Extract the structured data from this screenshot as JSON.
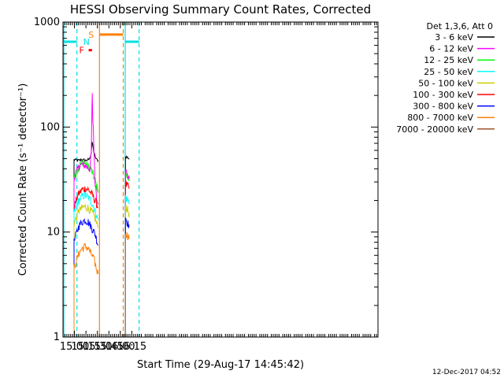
{
  "chart_data": {
    "type": "line",
    "title": "HESSI Observing Summary Count Rates, Corrected",
    "xlabel": "Start Time (29-Aug-17 14:45:42)",
    "ylabel": "Corrected Count Rate (s⁻¹ detector⁻¹)",
    "x_unit": "minutes of day (UT)",
    "xlim": [
      885,
      1297
    ],
    "x_ticks": [
      {
        "t": 900,
        "label": "15:00"
      },
      {
        "t": 915,
        "label": "15:15"
      },
      {
        "t": 930,
        "label": "15:30"
      },
      {
        "t": 945,
        "label": "15:45"
      },
      {
        "t": 960,
        "label": "16:00"
      },
      {
        "t": 975,
        "label": "16:15"
      }
    ],
    "ylim": [
      1,
      1000
    ],
    "y_scale": "log",
    "y_ticks": [
      {
        "v": 1,
        "label": "1"
      },
      {
        "v": 10,
        "label": "10"
      },
      {
        "v": 100,
        "label": "100"
      },
      {
        "v": 1000,
        "label": "1000"
      }
    ],
    "legend_header": "Det 1,3,6, Att 0",
    "legend_position": "right",
    "series": [
      {
        "name": "3 - 6 keV",
        "color": "#000000",
        "points": [
          [
            899.4,
            49
          ],
          [
            905,
            48
          ],
          [
            910,
            49
          ],
          [
            915,
            48
          ],
          [
            918,
            49
          ],
          [
            920,
            50
          ],
          [
            922,
            58
          ],
          [
            923,
            72
          ],
          [
            924,
            66
          ],
          [
            925,
            60
          ],
          [
            927,
            52
          ],
          [
            929,
            49
          ],
          [
            931,
            48
          ],
          [
            966.7,
            52
          ],
          [
            968,
            52
          ],
          [
            970,
            51
          ],
          [
            971.5,
            50
          ]
        ]
      },
      {
        "name": "6 - 12 keV",
        "color": "#ff00ff",
        "points": [
          [
            899.4,
            33
          ],
          [
            903,
            38
          ],
          [
            906,
            42
          ],
          [
            910,
            44
          ],
          [
            914,
            43
          ],
          [
            918,
            41
          ],
          [
            920,
            40
          ],
          [
            922,
            55
          ],
          [
            922.8,
            140
          ],
          [
            923.3,
            200
          ],
          [
            923.9,
            120
          ],
          [
            924.8,
            95
          ],
          [
            925.8,
            50
          ],
          [
            927,
            30
          ],
          [
            929,
            22
          ],
          [
            931,
            19
          ],
          [
            966.7,
            40
          ],
          [
            968,
            36
          ],
          [
            970,
            34
          ],
          [
            971.5,
            32
          ]
        ]
      },
      {
        "name": "12 - 25 keV",
        "color": "#00ff00",
        "points": [
          [
            899.4,
            32
          ],
          [
            903,
            38
          ],
          [
            906,
            43
          ],
          [
            910,
            46
          ],
          [
            914,
            45
          ],
          [
            918,
            42
          ],
          [
            921,
            40
          ],
          [
            924,
            36
          ],
          [
            927,
            31
          ],
          [
            929,
            27
          ],
          [
            931,
            25
          ],
          [
            966.7,
            37
          ],
          [
            968,
            34
          ],
          [
            970,
            33
          ],
          [
            971.5,
            31
          ]
        ]
      },
      {
        "name": "25 - 50 keV",
        "color": "#00ffff",
        "points": [
          [
            899.4,
            15
          ],
          [
            903,
            18
          ],
          [
            906,
            20
          ],
          [
            910,
            22
          ],
          [
            914,
            22.5
          ],
          [
            918,
            21.5
          ],
          [
            921,
            20
          ],
          [
            924,
            18
          ],
          [
            927,
            16
          ],
          [
            929,
            14.5
          ],
          [
            931,
            13
          ],
          [
            966.7,
            22
          ],
          [
            968,
            21
          ],
          [
            970,
            20
          ],
          [
            971.5,
            19
          ]
        ]
      },
      {
        "name": "50 - 100 keV",
        "color": "#cccc00",
        "points": [
          [
            899.4,
            12
          ],
          [
            903,
            14
          ],
          [
            906,
            16
          ],
          [
            910,
            17
          ],
          [
            914,
            17.5
          ],
          [
            918,
            17
          ],
          [
            921,
            16
          ],
          [
            924,
            15
          ],
          [
            927,
            13.5
          ],
          [
            929,
            12
          ],
          [
            931,
            11
          ],
          [
            966.7,
            18
          ],
          [
            968,
            17
          ],
          [
            970,
            16
          ],
          [
            971.5,
            15
          ]
        ]
      },
      {
        "name": "100 - 300 keV",
        "color": "#ff0000",
        "points": [
          [
            899.4,
            17
          ],
          [
            903,
            21
          ],
          [
            906,
            23.5
          ],
          [
            910,
            25.5
          ],
          [
            914,
            26
          ],
          [
            918,
            25.5
          ],
          [
            921,
            24
          ],
          [
            924,
            22
          ],
          [
            927,
            20
          ],
          [
            929,
            18.5
          ],
          [
            931,
            17
          ],
          [
            966.7,
            30
          ],
          [
            968,
            28
          ],
          [
            970,
            27
          ],
          [
            971.5,
            26
          ]
        ]
      },
      {
        "name": "300 - 800 keV",
        "color": "#0000ff",
        "points": [
          [
            899.4,
            8
          ],
          [
            903,
            10
          ],
          [
            906,
            11.5
          ],
          [
            910,
            12.5
          ],
          [
            914,
            13
          ],
          [
            918,
            12.5
          ],
          [
            921,
            11.5
          ],
          [
            924,
            10.5
          ],
          [
            927,
            9.5
          ],
          [
            929,
            8.5
          ],
          [
            931,
            7.5
          ],
          [
            966.7,
            14
          ],
          [
            968,
            13
          ],
          [
            970,
            12
          ],
          [
            971.5,
            11.5
          ]
        ]
      },
      {
        "name": "800 - 7000 keV",
        "color": "#ff8000",
        "points": [
          [
            899.4,
            4.5
          ],
          [
            903,
            5.5
          ],
          [
            906,
            6.3
          ],
          [
            910,
            7
          ],
          [
            914,
            7.3
          ],
          [
            918,
            7
          ],
          [
            921,
            6.4
          ],
          [
            924,
            5.8
          ],
          [
            927,
            5
          ],
          [
            929,
            4.4
          ],
          [
            931,
            4
          ],
          [
            966.7,
            10
          ],
          [
            968,
            9.5
          ],
          [
            970,
            9.2
          ],
          [
            971.5,
            9
          ]
        ]
      },
      {
        "name": "7000 - 20000 keV",
        "color": "#a0522d",
        "points": []
      }
    ],
    "night_intervals": [
      [
        885,
        903.2
      ],
      [
        966.4,
        984.5
      ]
    ],
    "saa_interval": [
      932.7,
      963.8
    ],
    "flare_marker": [
      918.5,
      923
    ],
    "annotations": {
      "night": "N",
      "saa": "S",
      "flare": "F"
    },
    "indicator_colors": {
      "night": "#00e0e0",
      "saa": "#ff8000",
      "flare": "#ff0000"
    },
    "bottom_stamp": "12-Dec-2017 04:52"
  }
}
